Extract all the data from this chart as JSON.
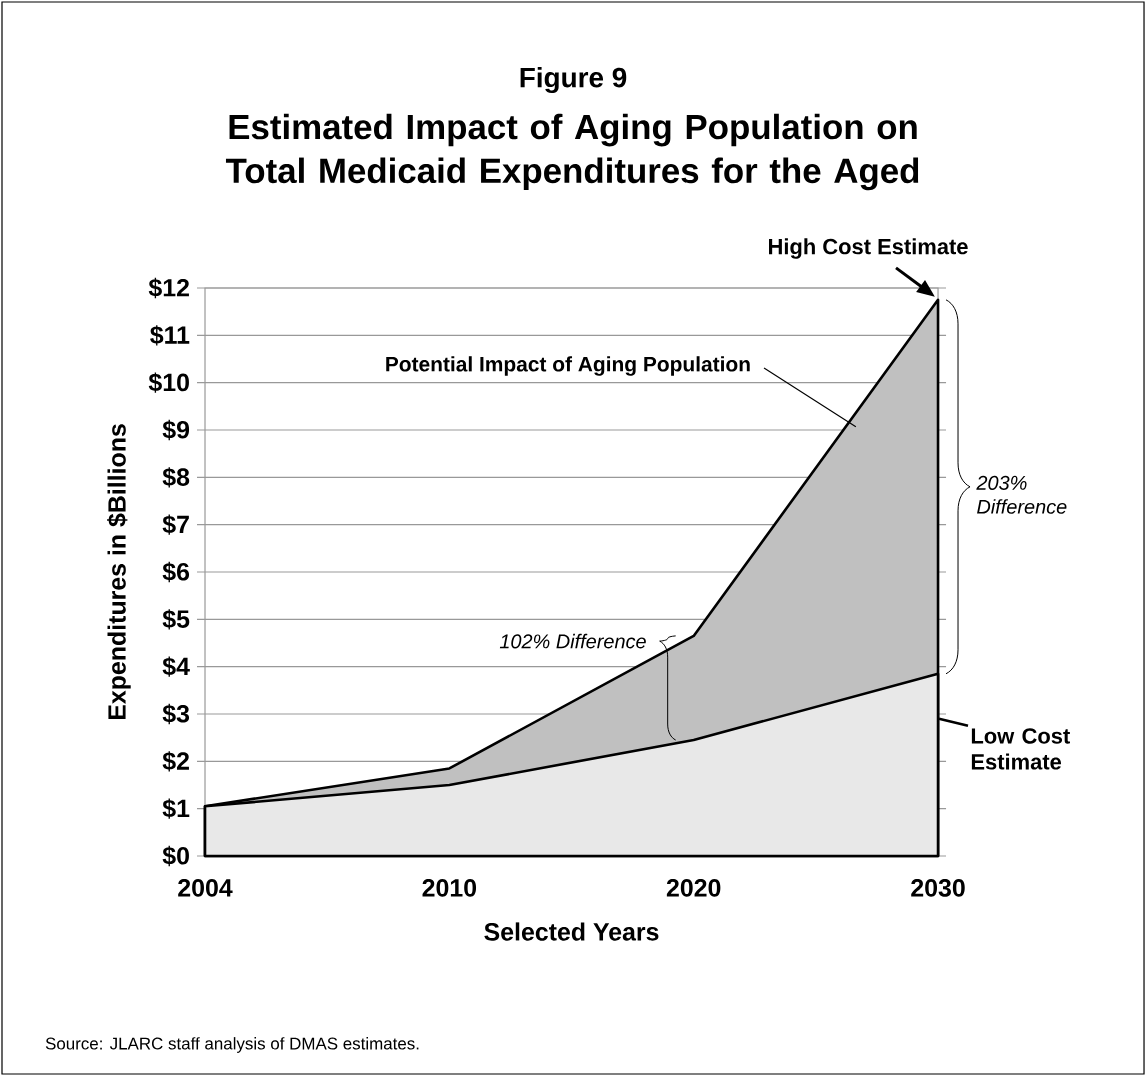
{
  "chart_data": {
    "type": "area",
    "title": "Figure 9",
    "subtitle": "Estimated Impact of Aging Population on Total Medicaid Expenditures for the Aged",
    "xlabel": "Selected Years",
    "ylabel": "Expenditures in $Billions",
    "categories": [
      "2004",
      "2010",
      "2020",
      "2030"
    ],
    "series": [
      {
        "name": "High Cost Estimate",
        "color": "#c0c0c0",
        "values": [
          1.05,
          1.85,
          4.65,
          11.75
        ]
      },
      {
        "name": "Low Cost Estimate",
        "color": "#e8e8e8",
        "values": [
          1.05,
          1.5,
          2.45,
          3.85
        ]
      }
    ],
    "ylim": [
      0,
      12
    ],
    "yticks": [
      {
        "value": 0,
        "label": "$0"
      },
      {
        "value": 1,
        "label": "$1"
      },
      {
        "value": 2,
        "label": "$2"
      },
      {
        "value": 3,
        "label": "$3"
      },
      {
        "value": 4,
        "label": "$4"
      },
      {
        "value": 5,
        "label": "$5"
      },
      {
        "value": 6,
        "label": "$6"
      },
      {
        "value": 7,
        "label": "$7"
      },
      {
        "value": 8,
        "label": "$8"
      },
      {
        "value": 9,
        "label": "$9"
      },
      {
        "value": 10,
        "label": "$10"
      },
      {
        "value": 11,
        "label": "$11"
      },
      {
        "value": 12,
        "label": "$12"
      }
    ],
    "grid": "y",
    "annotations": [
      "Potential Impact of Aging Population",
      "102% Difference",
      "203% Difference",
      "Source: JLARC staff analysis of DMAS estimates."
    ]
  }
}
